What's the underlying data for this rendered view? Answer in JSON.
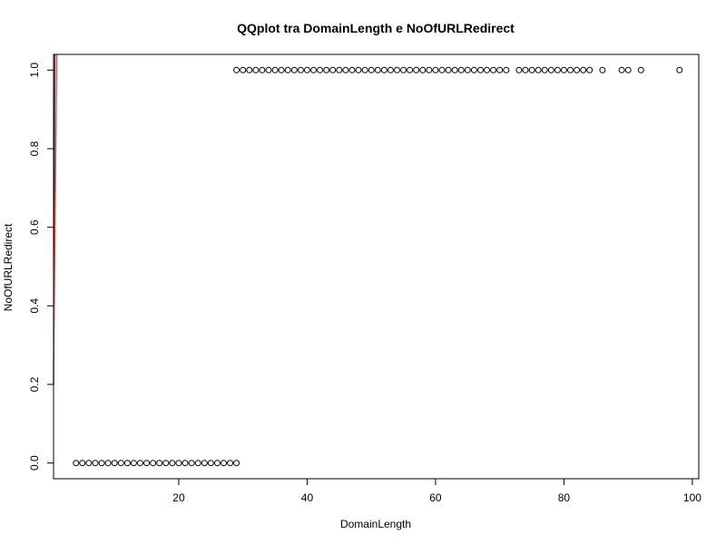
{
  "chart_data": {
    "type": "scatter",
    "title": "QQplot tra DomainLength e NoOfURLRedirect",
    "xlabel": "DomainLength",
    "ylabel": "NoOfURLRedirect",
    "xlim": [
      0.5,
      101
    ],
    "ylim": [
      -0.04,
      1.04
    ],
    "x_ticks": [
      20,
      40,
      60,
      80,
      100
    ],
    "x_tick_labels": [
      "20",
      "40",
      "60",
      "80",
      "100"
    ],
    "y_ticks": [
      0.0,
      0.2,
      0.4,
      0.6,
      0.8,
      1.0
    ],
    "y_tick_labels": [
      "0.0",
      "0.2",
      "0.4",
      "0.6",
      "0.8",
      "1.0"
    ],
    "grid": false,
    "legend": "none",
    "series": [
      {
        "points_y0": {
          "y": 0,
          "x": [
            4,
            5,
            6,
            7,
            8,
            9,
            10,
            11,
            12,
            13,
            14,
            15,
            16,
            17,
            18,
            19,
            20,
            21,
            22,
            23,
            24,
            25,
            26,
            27,
            28,
            29
          ]
        },
        "points_y1": {
          "y": 1,
          "x": [
            29,
            30,
            31,
            32,
            33,
            34,
            35,
            36,
            37,
            38,
            39,
            40,
            41,
            42,
            43,
            44,
            45,
            46,
            47,
            48,
            49,
            50,
            51,
            52,
            53,
            54,
            55,
            56,
            57,
            58,
            59,
            60,
            61,
            62,
            63,
            64,
            65,
            66,
            67,
            68,
            69,
            70,
            71,
            73,
            74,
            75,
            76,
            77,
            78,
            79,
            80,
            81,
            82,
            83,
            84,
            86,
            89,
            90,
            92,
            98
          ]
        },
        "marker_color": "#000000"
      }
    ],
    "reference_line": {
      "color": "#e34a4a",
      "points": [
        [
          0.5,
          0.2
        ],
        [
          1.0,
          1.04
        ]
      ]
    },
    "dark_line": {
      "color": "#333333",
      "points": [
        [
          0.5,
          0.2
        ],
        [
          0.7,
          1.04
        ]
      ]
    }
  }
}
